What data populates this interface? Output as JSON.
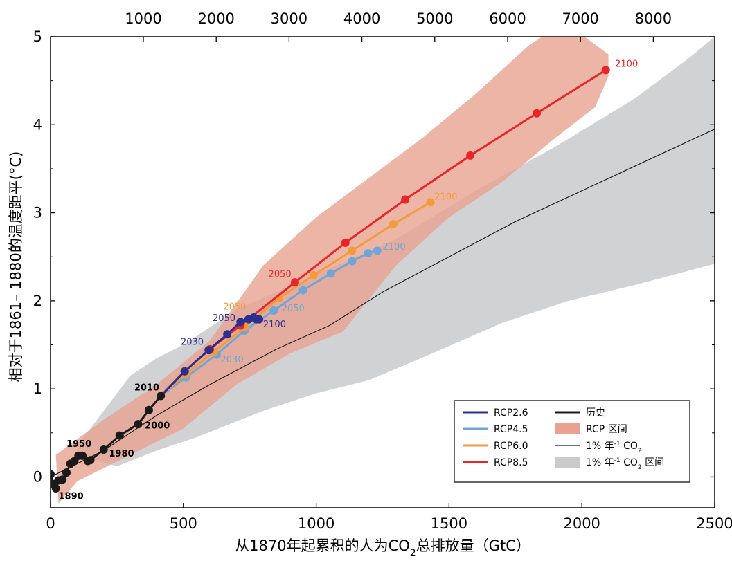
{
  "chart_data": {
    "type": "line",
    "xlabel_parts": [
      "从1870年起累积的人为CO",
      "2",
      "总排放量（GtC）"
    ],
    "ylabel": "相对于1861– 1880的温度距平(°C)",
    "xlim": [
      0,
      2500
    ],
    "ylim": [
      -0.35,
      5
    ],
    "x_ticks": [
      "0",
      "500",
      "1000",
      "1500",
      "2000",
      "2500"
    ],
    "y_ticks": [
      "0",
      "1",
      "2",
      "3",
      "4",
      "5"
    ],
    "top_ticks": [
      "1000",
      "2000",
      "3000",
      "4000",
      "5000",
      "6000",
      "7000",
      "8000"
    ],
    "colors": {
      "rcp26": "#2b2f8f",
      "rcp45": "#6ea6d8",
      "rcp60": "#f39a3c",
      "rcp85": "#e8262a",
      "historical": "#1a1a1a",
      "rcp_range": "#e9a290",
      "onepct_range": "#c8cacd"
    },
    "series": [
      {
        "name": "历史",
        "key": "historical",
        "points": [
          [
            0,
            0.03
          ],
          [
            10,
            -0.08
          ],
          [
            20,
            -0.13
          ],
          [
            30,
            -0.04
          ],
          [
            45,
            -0.03
          ],
          [
            60,
            0.05
          ],
          [
            75,
            0.15
          ],
          [
            90,
            0.18
          ],
          [
            105,
            0.24
          ],
          [
            120,
            0.24
          ],
          [
            140,
            0.18
          ],
          [
            150,
            0.19
          ],
          [
            200,
            0.31
          ],
          [
            260,
            0.47
          ],
          [
            330,
            0.6
          ],
          [
            370,
            0.76
          ],
          [
            415,
            0.92
          ]
        ]
      },
      {
        "name": "RCP2.6",
        "key": "rcp26",
        "points": [
          [
            415,
            0.92
          ],
          [
            505,
            1.2
          ],
          [
            595,
            1.44
          ],
          [
            665,
            1.62
          ],
          [
            715,
            1.76
          ],
          [
            745,
            1.79
          ],
          [
            765,
            1.81
          ],
          [
            775,
            1.79
          ],
          [
            785,
            1.79
          ]
        ]
      },
      {
        "name": "RCP4.5",
        "key": "rcp45",
        "points": [
          [
            415,
            0.92
          ],
          [
            510,
            1.13
          ],
          [
            625,
            1.39
          ],
          [
            730,
            1.66
          ],
          [
            840,
            1.89
          ],
          [
            950,
            2.12
          ],
          [
            1055,
            2.31
          ],
          [
            1135,
            2.45
          ],
          [
            1195,
            2.54
          ],
          [
            1230,
            2.57
          ]
        ]
      },
      {
        "name": "RCP6.0",
        "key": "rcp60",
        "points": [
          [
            415,
            0.92
          ],
          [
            510,
            1.17
          ],
          [
            615,
            1.42
          ],
          [
            730,
            1.7
          ],
          [
            860,
            2.03
          ],
          [
            990,
            2.29
          ],
          [
            1135,
            2.57
          ],
          [
            1290,
            2.87
          ],
          [
            1430,
            3.12
          ]
        ]
      },
      {
        "name": "RCP8.5",
        "key": "rcp85",
        "points": [
          [
            415,
            0.92
          ],
          [
            505,
            1.2
          ],
          [
            600,
            1.45
          ],
          [
            715,
            1.72
          ],
          [
            920,
            2.21
          ],
          [
            1110,
            2.66
          ],
          [
            1335,
            3.15
          ],
          [
            1580,
            3.65
          ],
          [
            1830,
            4.13
          ],
          [
            2090,
            4.62
          ]
        ]
      },
      {
        "name": "1% 年-1 CO2",
        "key": "onepct",
        "points": [
          [
            0,
            0
          ],
          [
            200,
            0.3
          ],
          [
            400,
            0.7
          ],
          [
            600,
            1.05
          ],
          [
            850,
            1.45
          ],
          [
            1050,
            1.72
          ],
          [
            1250,
            2.1
          ],
          [
            1500,
            2.5
          ],
          [
            1750,
            2.9
          ],
          [
            2000,
            3.25
          ],
          [
            2250,
            3.6
          ],
          [
            2500,
            3.95
          ]
        ]
      }
    ],
    "rcp_range": {
      "upper": [
        [
          20,
          0.25
        ],
        [
          200,
          0.65
        ],
        [
          400,
          1.05
        ],
        [
          600,
          1.55
        ],
        [
          800,
          2.4
        ],
        [
          1000,
          2.95
        ],
        [
          1200,
          3.4
        ],
        [
          1400,
          3.85
        ],
        [
          1600,
          4.35
        ],
        [
          1800,
          4.9
        ],
        [
          1850,
          5.0
        ],
        [
          2010,
          5.0
        ],
        [
          2100,
          4.8
        ]
      ],
      "lower": [
        [
          2100,
          4.8
        ],
        [
          2100,
          4.55
        ],
        [
          2050,
          4.2
        ],
        [
          1900,
          3.85
        ],
        [
          1700,
          3.35
        ],
        [
          1500,
          2.95
        ],
        [
          1300,
          2.4
        ],
        [
          1100,
          1.65
        ],
        [
          900,
          1.4
        ],
        [
          700,
          1.05
        ],
        [
          500,
          0.55
        ],
        [
          300,
          0.25
        ],
        [
          100,
          -0.05
        ],
        [
          30,
          -0.3
        ]
      ]
    },
    "onepct_range": {
      "upper": [
        [
          100,
          0.35
        ],
        [
          300,
          1.15
        ],
        [
          400,
          1.35
        ],
        [
          500,
          1.5
        ],
        [
          700,
          1.9
        ],
        [
          1000,
          2.3
        ],
        [
          1300,
          2.7
        ],
        [
          1600,
          3.25
        ],
        [
          1900,
          3.75
        ],
        [
          2200,
          4.3
        ],
        [
          2400,
          4.75
        ],
        [
          2500,
          5.0
        ]
      ],
      "lower": [
        [
          2500,
          5.0
        ],
        [
          2500,
          2.42
        ],
        [
          2200,
          2.18
        ],
        [
          1950,
          2.0
        ],
        [
          1700,
          1.75
        ],
        [
          1450,
          1.42
        ],
        [
          1200,
          1.1
        ],
        [
          1000,
          0.95
        ],
        [
          800,
          0.75
        ],
        [
          550,
          0.45
        ],
        [
          400,
          0.3
        ],
        [
          250,
          0.12
        ],
        [
          100,
          0.25
        ]
      ]
    },
    "year_labels": [
      {
        "text": "1950",
        "x": 60,
        "y": 0.34,
        "color": "#000000",
        "weight": "bold"
      },
      {
        "text": "1890",
        "x": 30,
        "y": -0.25,
        "color": "#000000",
        "weight": "bold"
      },
      {
        "text": "1980",
        "x": 220,
        "y": 0.23,
        "color": "#000000",
        "weight": "bold"
      },
      {
        "text": "2000",
        "x": 355,
        "y": 0.55,
        "color": "#000000",
        "weight": "bold"
      },
      {
        "text": "2010",
        "x": 315,
        "y": 0.98,
        "color": "#000000",
        "weight": "bold"
      },
      {
        "text": "2030",
        "x": 490,
        "y": 1.5,
        "color": "#2b2f8f",
        "weight": "normal"
      },
      {
        "text": "2050",
        "x": 610,
        "y": 1.77,
        "color": "#2b2f8f",
        "weight": "normal"
      },
      {
        "text": "2100",
        "x": 800,
        "y": 1.7,
        "color": "#2b2f8f",
        "weight": "normal"
      },
      {
        "text": "2030",
        "x": 640,
        "y": 1.3,
        "color": "#6ea6d8",
        "weight": "normal"
      },
      {
        "text": "2050",
        "x": 870,
        "y": 1.88,
        "color": "#6ea6d8",
        "weight": "normal"
      },
      {
        "text": "2100",
        "x": 1250,
        "y": 2.58,
        "color": "#6ea6d8",
        "weight": "normal"
      },
      {
        "text": "2050",
        "x": 650,
        "y": 1.9,
        "color": "#f39a3c",
        "weight": "normal"
      },
      {
        "text": "2100",
        "x": 1445,
        "y": 3.15,
        "color": "#f39a3c",
        "weight": "normal"
      },
      {
        "text": "2050",
        "x": 820,
        "y": 2.27,
        "color": "#e8262a",
        "weight": "normal"
      },
      {
        "text": "2100",
        "x": 2125,
        "y": 4.66,
        "color": "#e8262a",
        "weight": "normal"
      }
    ],
    "legend": {
      "placement": "bottom-right",
      "left_items": [
        "RCP2.6",
        "RCP4.5",
        "RCP6.0",
        "RCP8.5"
      ],
      "right_items": [
        {
          "kind": "line",
          "color_key": "historical",
          "text": "历史",
          "width": 3
        },
        {
          "kind": "box",
          "color_key": "rcp_range",
          "text": "RCP 区间"
        },
        {
          "kind": "line",
          "color_key": "historical",
          "text_main": "1% 年",
          "text_sup": "-1",
          "text_tail": " CO",
          "text_sub": "2",
          "width": 1.2
        },
        {
          "kind": "box",
          "color_key": "onepct_range",
          "text_main": "1% 年",
          "text_sup": "-1",
          "text_tail": " CO",
          "text_sub": "2",
          "text_after": " 区间"
        }
      ]
    }
  }
}
